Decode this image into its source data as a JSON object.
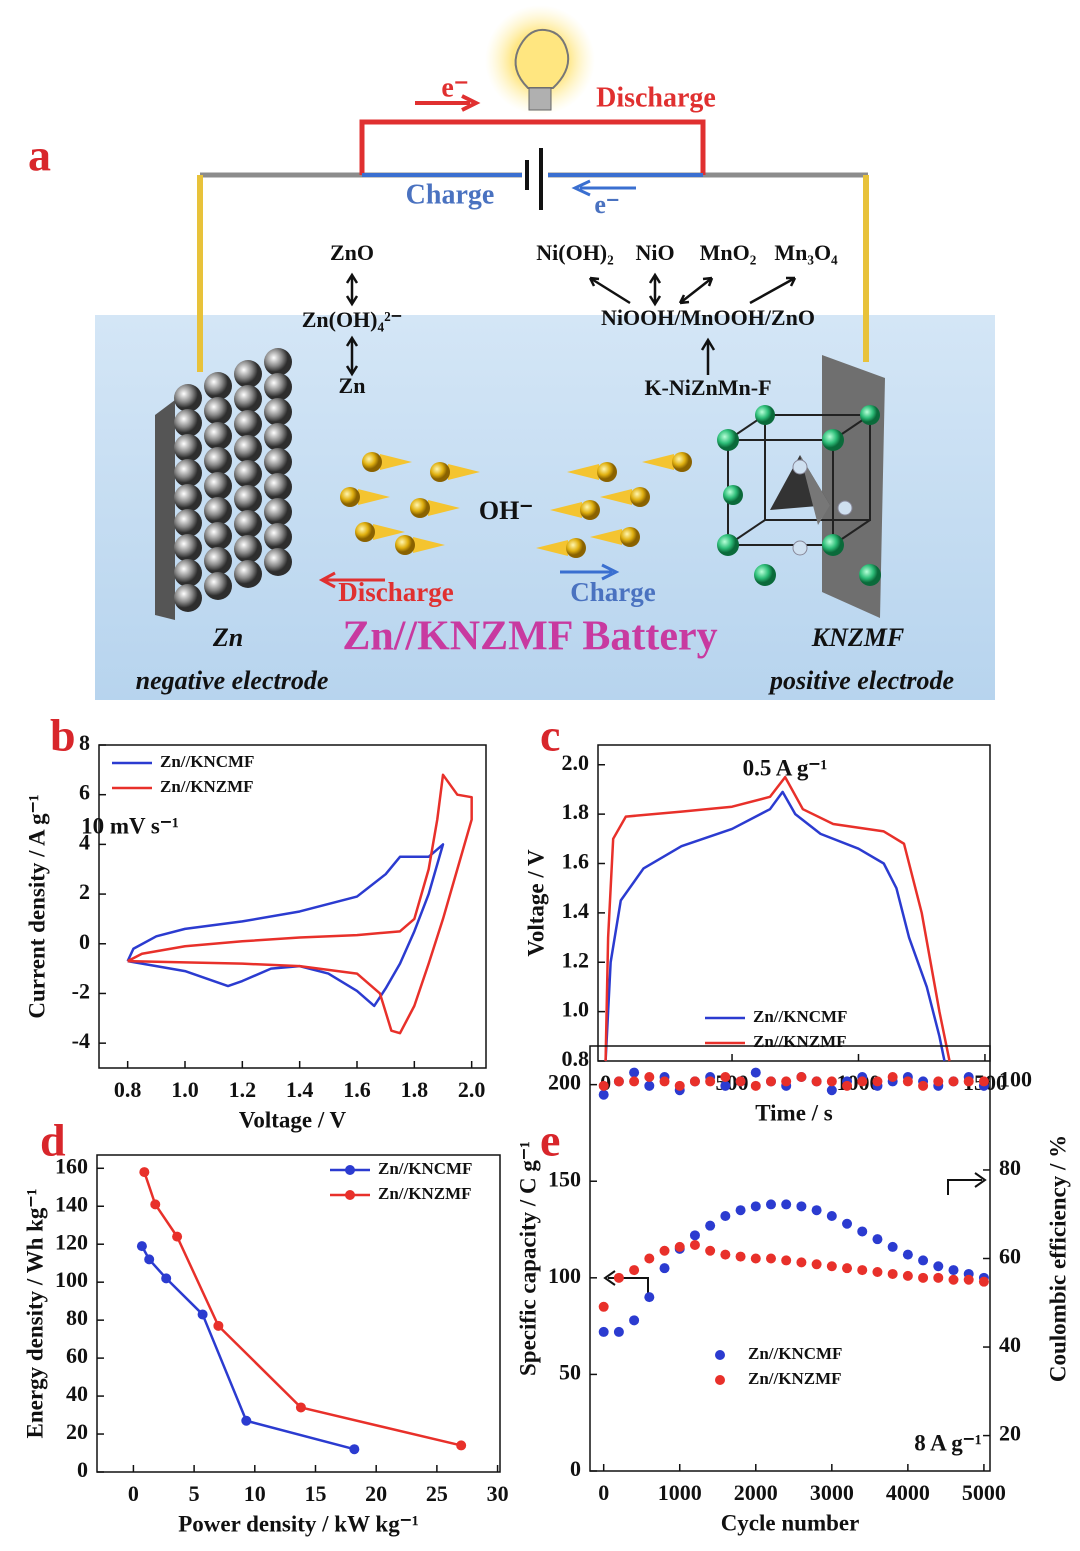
{
  "diagram": {
    "label": "a",
    "circuit": {
      "electron_top": "e⁻",
      "discharge": "Discharge",
      "charge": "Charge",
      "electron_bottom": "e⁻"
    },
    "reactions": {
      "zno": "ZnO",
      "zincate": "Zn(OH)₄²⁻",
      "zn": "Zn",
      "nioh2": "Ni(OH)₂",
      "nio": "NiO",
      "mno2": "MnO₂",
      "mn3o4": "Mn₃O₄",
      "intermediate": "NiOOH/MnOOH/ZnO",
      "precursor": "K-NiZnMn-F"
    },
    "ion": "OH⁻",
    "ion_discharge": "Discharge",
    "ion_charge": "Charge",
    "battery": "Zn//KNZMF Battery",
    "negative": {
      "name": "Zn",
      "role": "negative electrode"
    },
    "positive": {
      "name": "KNZMF",
      "role": "positive electrode"
    }
  },
  "chart_data": [
    {
      "type": "line",
      "label": "b",
      "xlabel": "Voltage / V",
      "ylabel": "Current density / A g⁻¹",
      "annotation": "10 mV s⁻¹",
      "xlim": [
        0.7,
        2.05
      ],
      "xticks": [
        0.8,
        {
          "value": 1,
          "label": "1.0"
        },
        1.2,
        1.4,
        1.6,
        1.8,
        {
          "value": 2,
          "label": "2.0"
        }
      ],
      "ylim": [
        -5,
        8
      ],
      "yticks": [
        -4,
        -2,
        0,
        2,
        4,
        6,
        8
      ],
      "series": [
        {
          "name": "Zn//KNCMF",
          "color": "#2b3bd0",
          "x": [
            0.8,
            0.82,
            0.9,
            1.0,
            1.2,
            1.4,
            1.6,
            1.7,
            1.75,
            1.85,
            1.9,
            1.85,
            1.8,
            1.75,
            1.7,
            1.66,
            1.6,
            1.5,
            1.4,
            1.3,
            1.2,
            1.15,
            1.0,
            0.9,
            0.8
          ],
          "values": [
            -0.7,
            -0.2,
            0.3,
            0.6,
            0.9,
            1.3,
            1.9,
            2.8,
            3.5,
            3.5,
            4.0,
            2.0,
            0.5,
            -0.8,
            -1.8,
            -2.5,
            -1.9,
            -1.2,
            -0.9,
            -1.0,
            -1.5,
            -1.7,
            -1.1,
            -0.9,
            -0.7
          ]
        },
        {
          "name": "Zn//KNZMF",
          "color": "#e8302a",
          "x": [
            0.8,
            0.85,
            1.0,
            1.2,
            1.4,
            1.6,
            1.75,
            1.8,
            1.85,
            1.88,
            1.9,
            1.95,
            2.0,
            2.0,
            1.95,
            1.9,
            1.85,
            1.8,
            1.75,
            1.72,
            1.68,
            1.6,
            1.4,
            1.2,
            1.0,
            0.8
          ],
          "values": [
            -0.7,
            -0.4,
            -0.1,
            0.1,
            0.25,
            0.35,
            0.5,
            1.0,
            3.0,
            5.0,
            6.8,
            6.0,
            5.9,
            5.0,
            3.0,
            1.0,
            -0.8,
            -2.5,
            -3.6,
            -3.5,
            -2.0,
            -1.2,
            -0.9,
            -0.8,
            -0.75,
            -0.7
          ]
        }
      ]
    },
    {
      "type": "line",
      "label": "c",
      "xlabel": "Time / s",
      "ylabel": "Voltage / V",
      "annotation": "0.5 A g⁻¹",
      "xlim": [
        -30,
        1520
      ],
      "xticks": [
        0,
        500,
        1000,
        1500
      ],
      "ylim": [
        0.8,
        2.08
      ],
      "yticks": [
        0.8,
        {
          "value": 1,
          "label": "1.0"
        },
        1.2,
        1.4,
        1.6,
        1.8,
        {
          "value": 2,
          "label": "2.0"
        }
      ],
      "series": [
        {
          "name": "Zn//KNCMF",
          "color": "#2b3bd0",
          "x": [
            0,
            20,
            60,
            150,
            300,
            500,
            650,
            700,
            750,
            850,
            1000,
            1100,
            1150,
            1200,
            1270,
            1320,
            1340
          ],
          "values": [
            0.8,
            1.2,
            1.45,
            1.58,
            1.67,
            1.74,
            1.82,
            1.89,
            1.8,
            1.72,
            1.66,
            1.6,
            1.5,
            1.3,
            1.1,
            0.9,
            0.8
          ]
        },
        {
          "name": "Zn//KNZMF",
          "color": "#e8302a",
          "x": [
            0,
            10,
            30,
            80,
            300,
            500,
            650,
            710,
            780,
            900,
            1100,
            1180,
            1250,
            1320,
            1360
          ],
          "values": [
            0.8,
            1.3,
            1.7,
            1.79,
            1.81,
            1.83,
            1.87,
            1.95,
            1.82,
            1.76,
            1.73,
            1.68,
            1.4,
            1.0,
            0.8
          ]
        }
      ]
    },
    {
      "type": "line",
      "label": "d",
      "markers": true,
      "xlabel": "Power density / kW kg⁻¹",
      "ylabel": "Energy density / Wh kg⁻¹",
      "xlim": [
        -3,
        30.2
      ],
      "xticks": [
        0,
        5,
        10,
        15,
        20,
        25,
        30
      ],
      "ylim": [
        0,
        167
      ],
      "yticks": [
        0,
        20,
        40,
        60,
        80,
        100,
        120,
        140,
        160
      ],
      "series": [
        {
          "name": "Zn//KNCMF",
          "color": "#2b3bd0",
          "x": [
            0.7,
            1.3,
            2.7,
            5.7,
            9.3,
            18.2
          ],
          "values": [
            119,
            112,
            102,
            83,
            27,
            12
          ]
        },
        {
          "name": "Zn//KNZMF",
          "color": "#e8302a",
          "x": [
            0.9,
            1.8,
            3.6,
            7,
            13.8,
            27
          ],
          "values": [
            158,
            141,
            124,
            77,
            34,
            14
          ]
        }
      ]
    },
    {
      "type": "scatter",
      "label": "e",
      "xlabel": "Cycle number",
      "ylabel": "Specific capacity / C g⁻¹",
      "y2label": "Coulombic efficiency / %",
      "annotation": "8 A g⁻¹",
      "xlim": [
        -180,
        5080
      ],
      "xticks": [
        0,
        1000,
        2000,
        3000,
        4000,
        5000
      ],
      "ylim": [
        0,
        220
      ],
      "yticks": [
        0,
        50,
        100,
        150,
        200
      ],
      "y2lim": [
        12,
        108
      ],
      "y2ticks": [
        20,
        40,
        60,
        80,
        100
      ],
      "x": [
        0,
        200,
        400,
        600,
        800,
        1000,
        1200,
        1400,
        1600,
        1800,
        2000,
        2200,
        2400,
        2600,
        2800,
        3000,
        3200,
        3400,
        3600,
        3800,
        4000,
        4200,
        4400,
        4600,
        4800,
        5000
      ],
      "series": [
        {
          "name": "Zn//KNCMF",
          "color": "#2b3bd0",
          "values": [
            72,
            72,
            78,
            90,
            105,
            115,
            122,
            127,
            132,
            135,
            137,
            138,
            138,
            137,
            135,
            132,
            128,
            124,
            120,
            116,
            112,
            109,
            106,
            104,
            102,
            100
          ]
        },
        {
          "name": "Zn//KNZMF",
          "color": "#e8302a",
          "values": [
            85,
            100,
            104,
            110,
            114,
            116,
            117,
            114,
            112,
            111,
            110,
            110,
            109,
            108,
            107,
            106,
            105,
            104,
            103,
            102,
            101,
            100,
            100,
            99,
            99,
            98
          ]
        },
        {
          "color": "#2b3bd0",
          "axis": "y2",
          "values": [
            97,
            100,
            102,
            99,
            101,
            98,
            100,
            101,
            99,
            100,
            102,
            100,
            99,
            101,
            100,
            98,
            100,
            101,
            99,
            100,
            101,
            100,
            99,
            100,
            101,
            99
          ]
        },
        {
          "color": "#e8302a",
          "axis": "y2",
          "values": [
            99,
            100,
            100,
            101,
            100,
            99,
            100,
            100,
            101,
            100,
            99,
            100,
            100,
            101,
            100,
            100,
            99,
            100,
            100,
            101,
            100,
            99,
            100,
            100,
            100,
            100
          ]
        }
      ]
    }
  ]
}
